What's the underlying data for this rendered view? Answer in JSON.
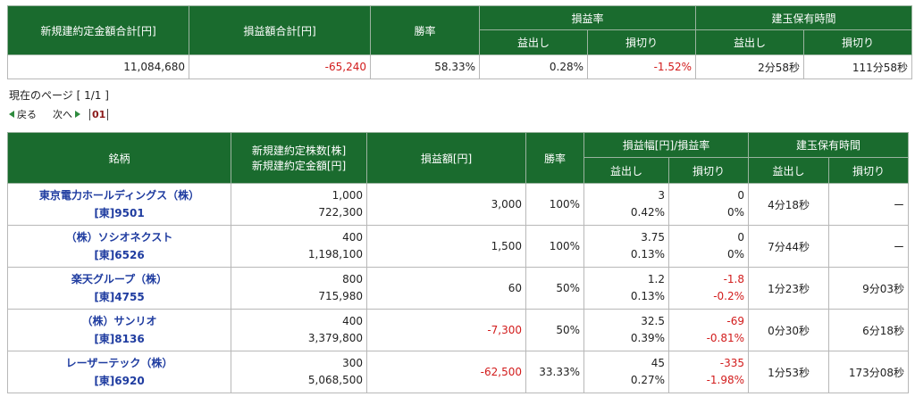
{
  "summary": {
    "headers": {
      "new_amount": "新規建約定金額合計[円]",
      "pnl_total": "損益額合計[円]",
      "win_rate": "勝率",
      "pnl_rate": "損益率",
      "hold_time": "建玉保有時間",
      "profit": "益出し",
      "loss": "損切り"
    },
    "values": {
      "new_amount": "11,084,680",
      "pnl_total": "-65,240",
      "win_rate": "58.33%",
      "rate_profit": "0.28%",
      "rate_loss": "-1.52%",
      "time_profit": "2分58秒",
      "time_loss": "111分58秒"
    }
  },
  "pager": {
    "current_label": "現在のページ [ 1/1 ]",
    "prev": "戻る",
    "next": "次へ",
    "page": "01"
  },
  "list": {
    "headers": {
      "stock": "銘柄",
      "shares": "新規建約定株数[株]",
      "amount": "新規建約定金額[円]",
      "pnl": "損益額[円]",
      "win_rate": "勝率",
      "range": "損益幅[円]/損益率",
      "hold_time": "建玉保有時間",
      "profit": "益出し",
      "loss": "損切り"
    },
    "rows": [
      {
        "name": "東京電力ホールディングス（株）",
        "code": "[東]9501",
        "shares": "1,000",
        "amount": "722,300",
        "pnl": "3,000",
        "win": "100%",
        "p_yen": "3",
        "p_pct": "0.42%",
        "l_yen": "0",
        "l_pct": "0%",
        "t_profit": "4分18秒",
        "t_loss": "ー"
      },
      {
        "name": "（株）ソシオネクスト",
        "code": "[東]6526",
        "shares": "400",
        "amount": "1,198,100",
        "pnl": "1,500",
        "win": "100%",
        "p_yen": "3.75",
        "p_pct": "0.13%",
        "l_yen": "0",
        "l_pct": "0%",
        "t_profit": "7分44秒",
        "t_loss": "ー"
      },
      {
        "name": "楽天グループ（株）",
        "code": "[東]4755",
        "shares": "800",
        "amount": "715,980",
        "pnl": "60",
        "win": "50%",
        "p_yen": "1.2",
        "p_pct": "0.13%",
        "l_yen": "-1.8",
        "l_pct": "-0.2%",
        "t_profit": "1分23秒",
        "t_loss": "9分03秒"
      },
      {
        "name": "（株）サンリオ",
        "code": "[東]8136",
        "shares": "400",
        "amount": "3,379,800",
        "pnl": "-7,300",
        "win": "50%",
        "p_yen": "32.5",
        "p_pct": "0.39%",
        "l_yen": "-69",
        "l_pct": "-0.81%",
        "t_profit": "0分30秒",
        "t_loss": "6分18秒"
      },
      {
        "name": "レーザーテック（株）",
        "code": "[東]6920",
        "shares": "300",
        "amount": "5,068,500",
        "pnl": "-62,500",
        "win": "33.33%",
        "p_yen": "45",
        "p_pct": "0.27%",
        "l_yen": "-335",
        "l_pct": "-1.98%",
        "t_profit": "1分53秒",
        "t_loss": "173分08秒"
      }
    ]
  },
  "colors": {
    "header_bg": "#1a6b2e",
    "negative": "#d21c1c",
    "link": "#1f3ca0"
  }
}
